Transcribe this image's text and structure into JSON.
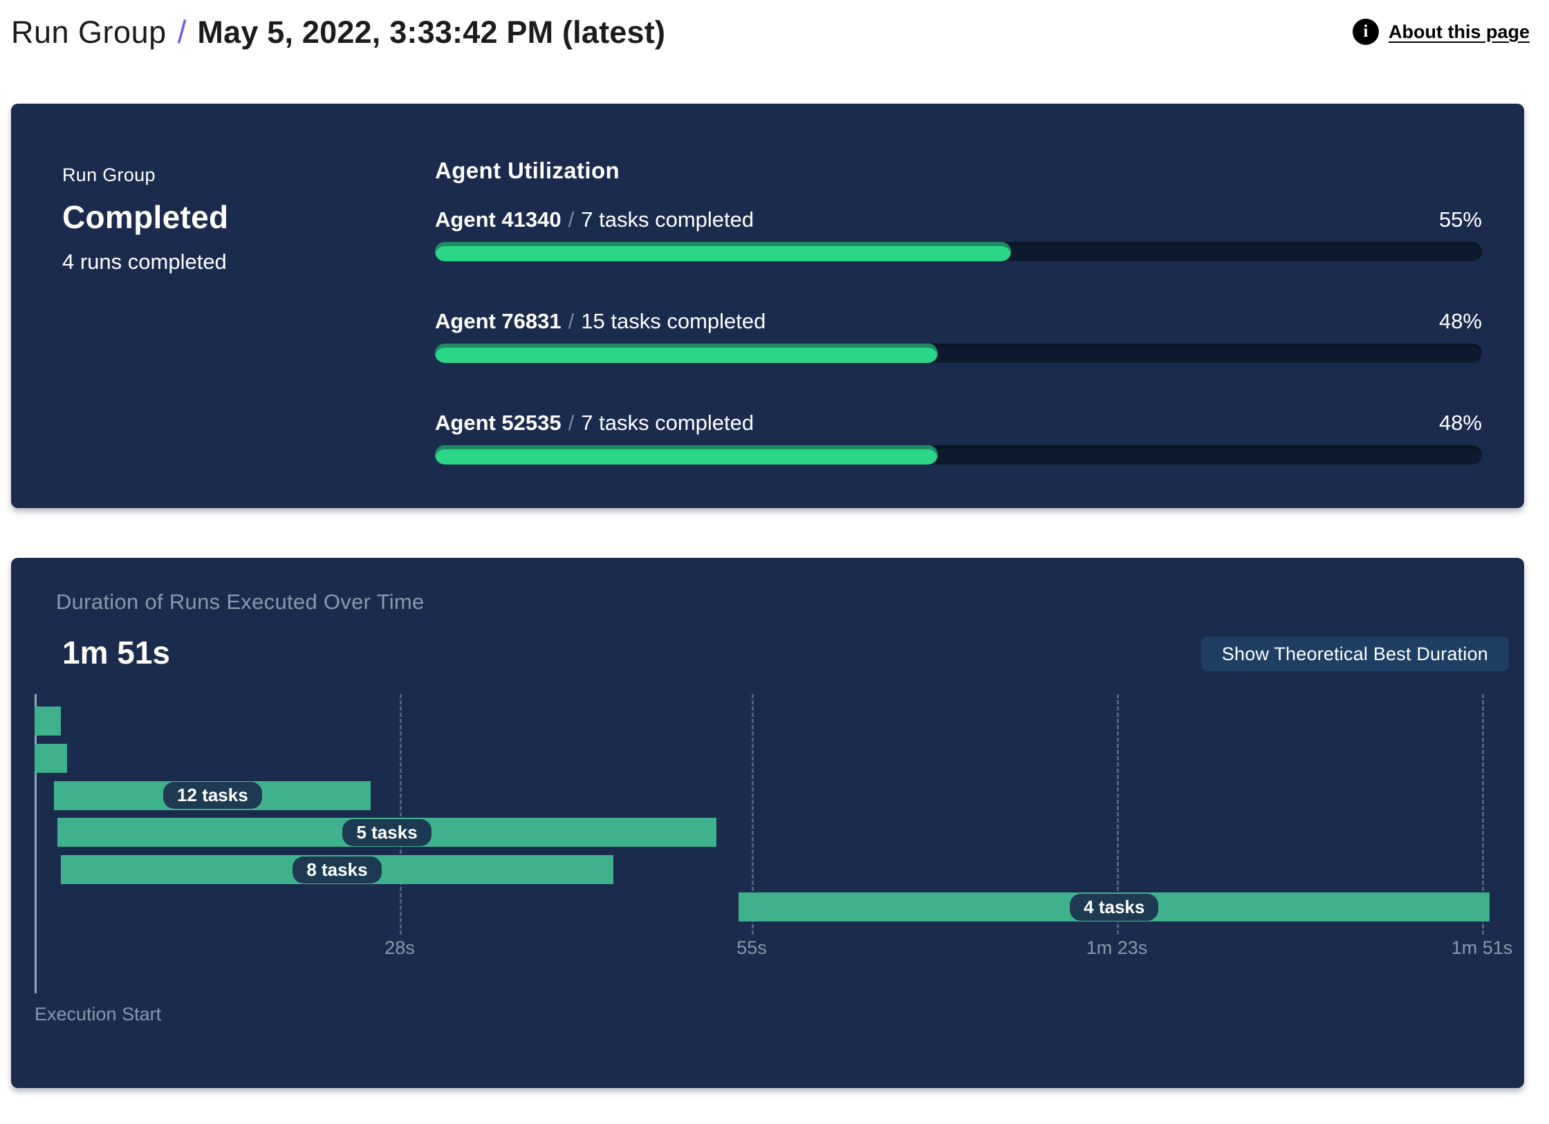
{
  "header": {
    "breadcrumb_root": "Run Group",
    "separator": "/",
    "title": "May 5, 2022, 3:33:42 PM (latest)",
    "about_link": "About this page",
    "info_icon_glyph": "i"
  },
  "summary_panel": {
    "label": "Run Group",
    "status": "Completed",
    "runs_completed": "4 runs completed",
    "section_title": "Agent Utilization",
    "label_separator": "/",
    "agents": [
      {
        "name": "Agent 41340",
        "tasks": "7 tasks completed",
        "utilization": "55%",
        "pct": 55
      },
      {
        "name": "Agent 76831",
        "tasks": "15 tasks completed",
        "utilization": "48%",
        "pct": 48
      },
      {
        "name": "Agent 52535",
        "tasks": "7 tasks completed",
        "utilization": "48%",
        "pct": 48
      }
    ]
  },
  "duration_panel": {
    "title": "Duration of Runs Executed Over Time",
    "total_duration": "1m 51s",
    "button_label": "Show Theoretical Best Duration",
    "axis_start_label": "Execution Start"
  },
  "chart_data": {
    "type": "gantt",
    "title": "Duration of Runs Executed Over Time",
    "total_duration_label": "1m 51s",
    "time_axis": {
      "unit": "seconds",
      "min": 0,
      "max": 111,
      "ticks": [
        {
          "label": "28s",
          "seconds": 28
        },
        {
          "label": "55s",
          "seconds": 55
        },
        {
          "label": "1m 23s",
          "seconds": 83
        },
        {
          "label": "1m 51s",
          "seconds": 111
        }
      ],
      "start_label": "Execution Start"
    },
    "runs": [
      {
        "label": "",
        "start_s": 0,
        "end_s": 2.0
      },
      {
        "label": "",
        "start_s": 0,
        "end_s": 2.5
      },
      {
        "label": "12 tasks",
        "start_s": 1.5,
        "end_s": 25.8
      },
      {
        "label": "5 tasks",
        "start_s": 1.75,
        "end_s": 52.3
      },
      {
        "label": "8 tasks",
        "start_s": 2.0,
        "end_s": 44.4
      },
      {
        "label": "4 tasks",
        "start_s": 54.0,
        "end_s": 111.6
      }
    ]
  },
  "colors": {
    "panel_bg": "#1a2b4d",
    "progress_fill": "#2bd687",
    "progress_fill_shade": "#1f8a63",
    "progress_track": "#0e1a2e",
    "gantt_bar": "#3fb28d",
    "pill_bg": "#1d3a52",
    "button_bg": "#1e3e63",
    "muted_text": "#8b99ad",
    "accent_slash": "#7a52f4",
    "info_icon_bg": "#000000"
  }
}
